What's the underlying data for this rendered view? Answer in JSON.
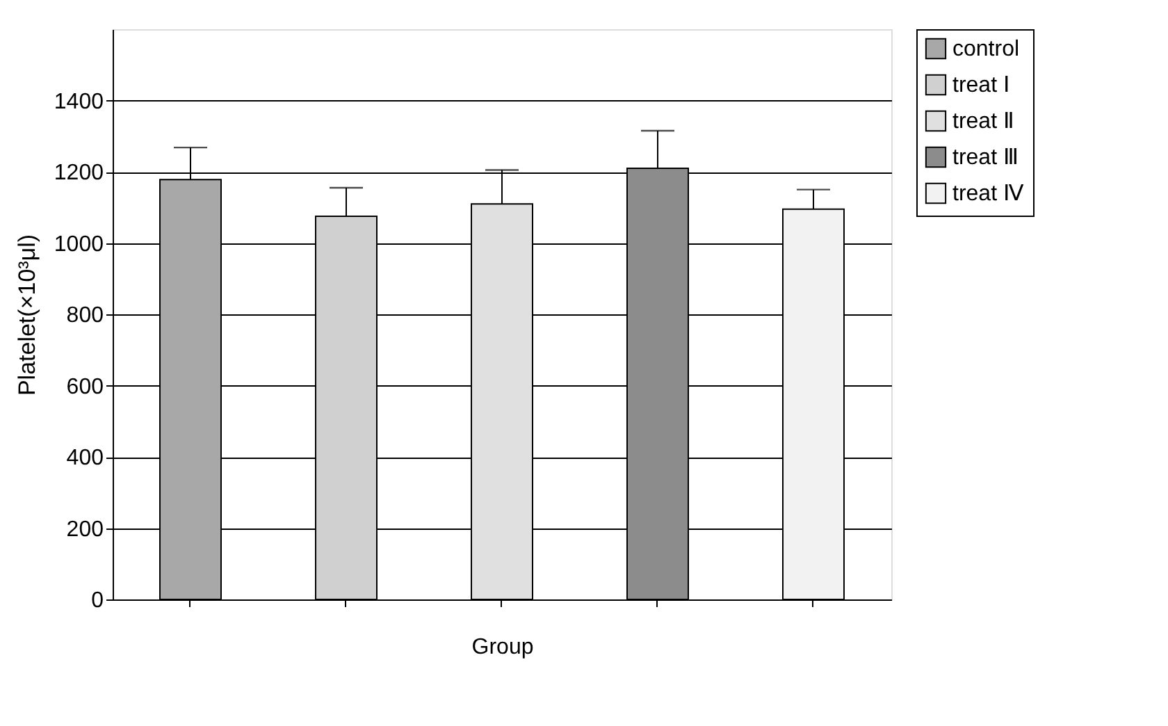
{
  "chart_data": {
    "type": "bar",
    "xlabel": "Group",
    "ylabel": "Platelet(×10³μl)",
    "categories": [
      null,
      null,
      null,
      null,
      null
    ],
    "series": [
      {
        "name": "control",
        "color": "#a8a8a8",
        "values": [
          1178,
          null,
          null,
          null,
          null
        ],
        "errors": [
          90,
          null,
          null,
          null,
          null
        ]
      },
      {
        "name": "treat Ⅰ",
        "color": "#d0d0d0",
        "values": [
          null,
          1075,
          null,
          null,
          null
        ],
        "errors": [
          null,
          80,
          null,
          null,
          null
        ]
      },
      {
        "name": "treat Ⅱ",
        "color": "#e0e0e0",
        "values": [
          null,
          null,
          1110,
          null,
          null
        ],
        "errors": [
          null,
          null,
          95,
          null,
          null
        ]
      },
      {
        "name": "treat Ⅲ",
        "color": "#8c8c8c",
        "values": [
          null,
          null,
          null,
          1210,
          null
        ],
        "errors": [
          null,
          null,
          null,
          105,
          null
        ]
      },
      {
        "name": "treat Ⅳ",
        "color": "#f2f2f2",
        "values": [
          null,
          null,
          null,
          null,
          1095
        ],
        "errors": [
          null,
          null,
          null,
          null,
          55
        ]
      }
    ],
    "ylim": [
      0,
      1600
    ],
    "yticks": [
      0,
      200,
      400,
      600,
      800,
      1000,
      1200,
      1400
    ],
    "grid": "y",
    "legend": "right",
    "tick_labels": "y"
  }
}
